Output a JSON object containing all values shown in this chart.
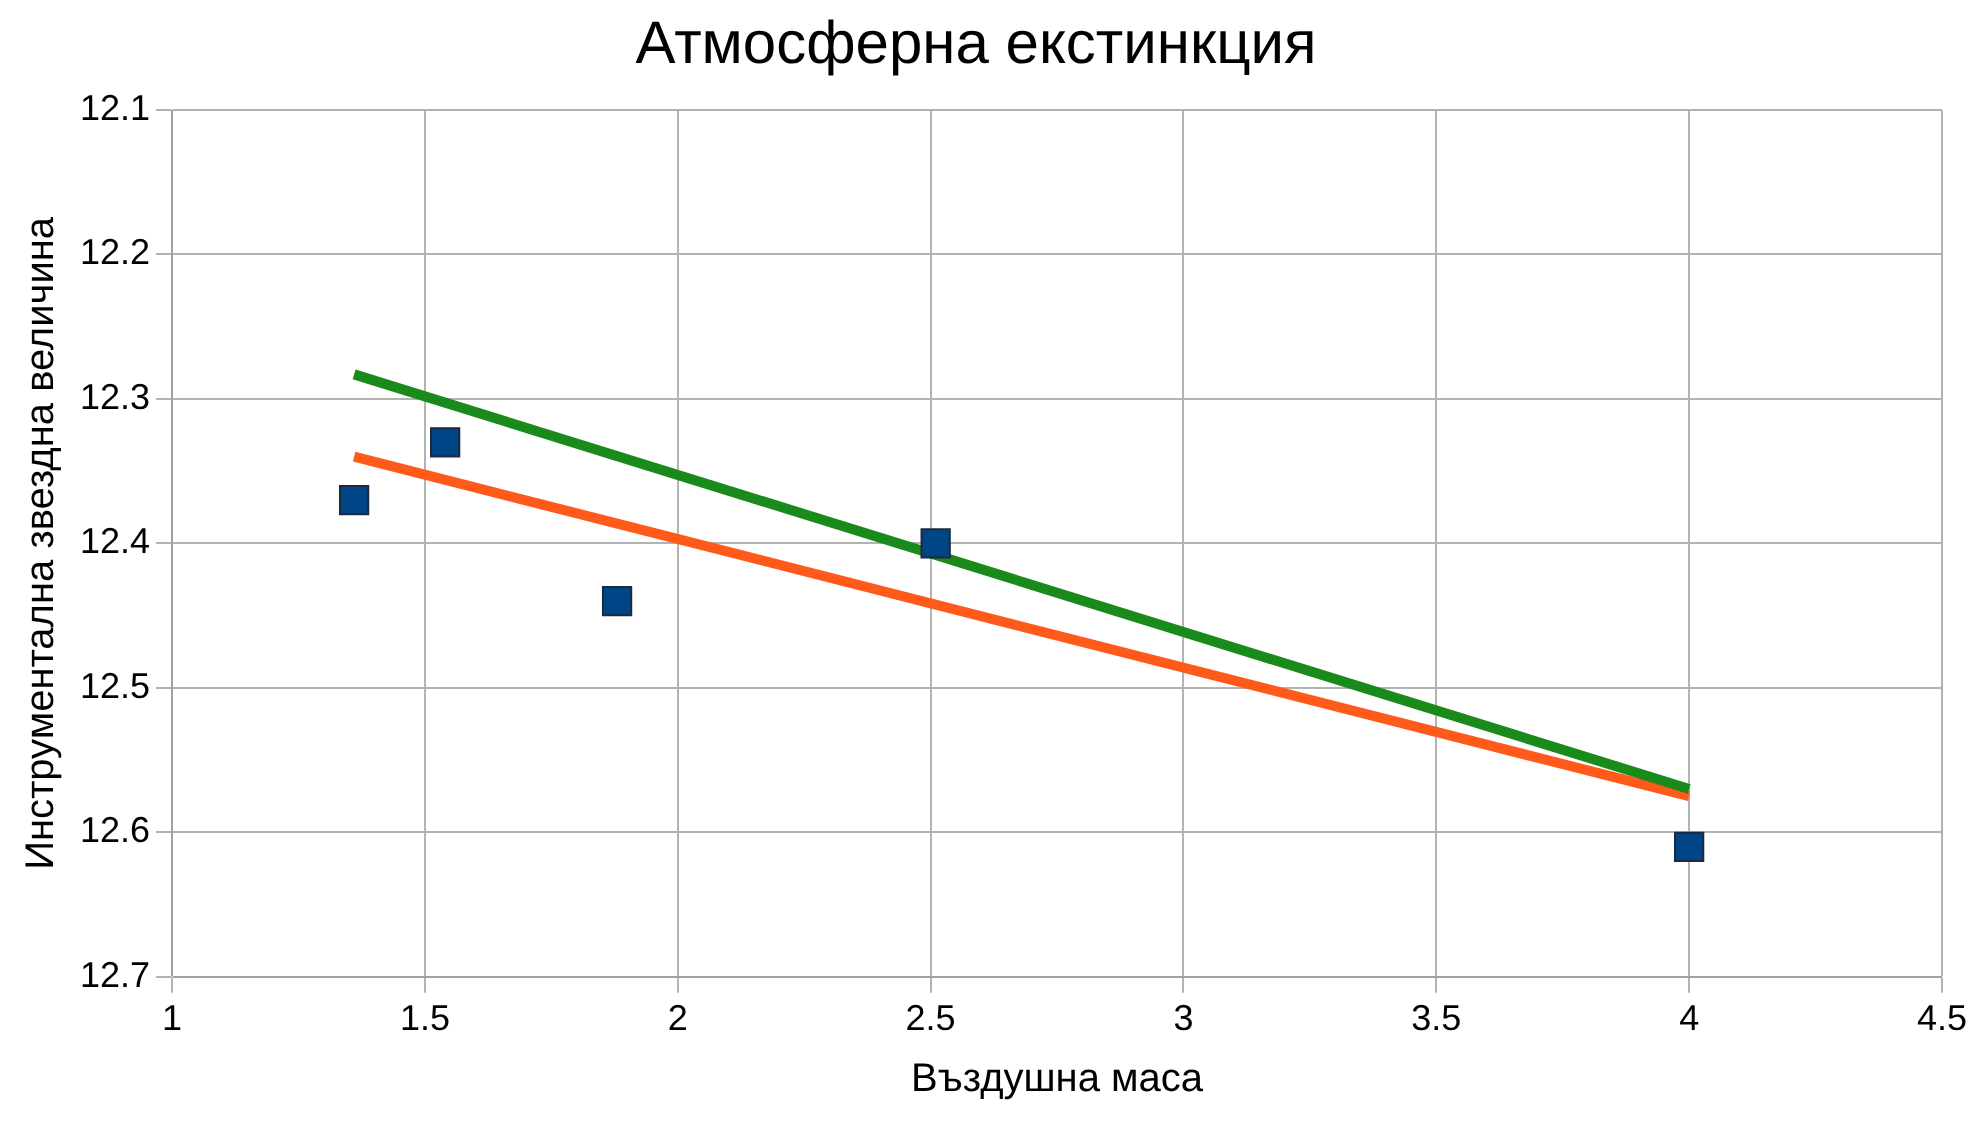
{
  "chart_data": {
    "type": "scatter",
    "title": "Атмосферна екстинкция",
    "xlabel": "Въздушна маса",
    "ylabel": "Инструментална звездна величина",
    "xlim": [
      1,
      4.5
    ],
    "xticks": [
      1,
      1.5,
      2,
      2.5,
      3,
      3.5,
      4,
      4.5
    ],
    "ylim": [
      12.7,
      12.1
    ],
    "yticks": [
      12.1,
      12.2,
      12.3,
      12.4,
      12.5,
      12.6,
      12.7
    ],
    "grid": true,
    "legend": false,
    "series": [
      {
        "color": "#004586",
        "marker": "square",
        "x": [
          1.36,
          1.54,
          1.88,
          2.51,
          4.0
        ],
        "values": [
          12.37,
          12.33,
          12.44,
          12.4,
          12.61
        ]
      },
      {
        "type": "line",
        "color": "#1a8a1a",
        "marker": "none",
        "x": [
          1.36,
          4.0
        ],
        "values": [
          12.283,
          12.57
        ]
      },
      {
        "type": "line",
        "color": "#ff5a1a",
        "marker": "none",
        "x": [
          1.36,
          4.0
        ],
        "values": [
          12.34,
          12.575
        ]
      }
    ]
  }
}
